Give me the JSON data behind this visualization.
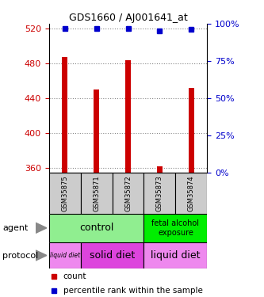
{
  "title": "GDS1660 / AJ001641_at",
  "samples": [
    "GSM35875",
    "GSM35871",
    "GSM35872",
    "GSM35873",
    "GSM35874"
  ],
  "count_values": [
    487,
    450,
    483,
    362,
    452
  ],
  "percentile_values": [
    97,
    97,
    97,
    95,
    96
  ],
  "ylim_left": [
    355,
    525
  ],
  "ylim_right": [
    0,
    100
  ],
  "yticks_left": [
    360,
    400,
    440,
    480,
    520
  ],
  "yticks_right": [
    0,
    25,
    50,
    75,
    100
  ],
  "bar_color": "#cc0000",
  "dot_color": "#0000cc",
  "bar_base": 355,
  "left_tick_color": "#cc0000",
  "right_tick_color": "#0000cc",
  "grid_color": "#888888",
  "sample_box_color": "#cccccc",
  "agent_control_color": "#90ee90",
  "agent_fae_color": "#00ee00",
  "protocol_liquid_color": "#ee88ee",
  "protocol_solid_color": "#dd44dd",
  "legend_count_color": "#cc0000",
  "legend_percentile_color": "#0000cc"
}
